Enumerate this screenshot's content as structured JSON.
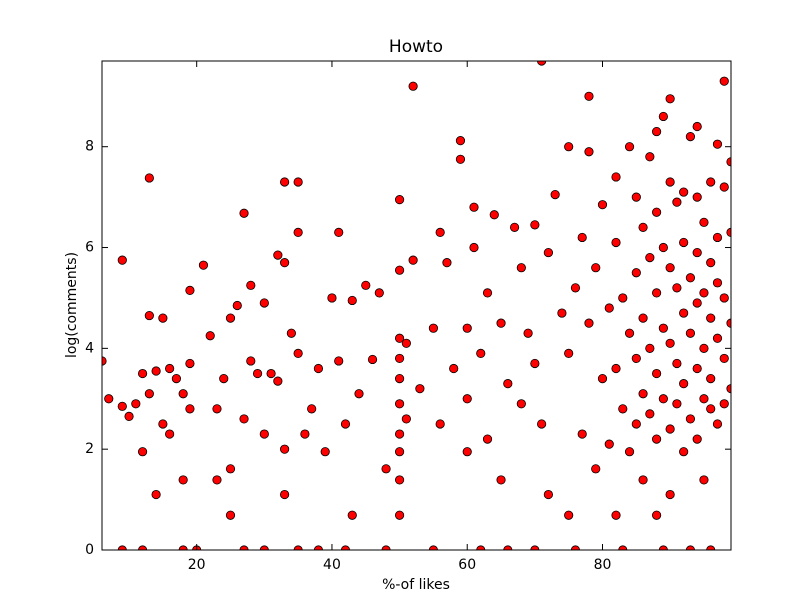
{
  "chart_data": {
    "type": "scatter",
    "title": "Howto",
    "x_label": "%-of likes",
    "y_label": "log(comments)",
    "color": "#ff0000",
    "xlim": [
      6,
      99
    ],
    "ylim": [
      0,
      9.7
    ],
    "xticks": [
      20,
      40,
      60,
      80
    ],
    "yticks": [
      0,
      2,
      4,
      6,
      8
    ],
    "x": [
      6,
      7,
      9,
      9,
      10,
      11,
      12,
      12,
      13,
      13,
      13,
      14,
      14,
      15,
      15,
      16,
      16,
      17,
      18,
      18,
      19,
      19,
      19,
      21,
      22,
      23,
      23,
      24,
      25,
      25,
      25,
      26,
      27,
      27,
      28,
      28,
      29,
      30,
      30,
      31,
      32,
      32,
      33,
      33,
      33,
      33,
      34,
      35,
      35,
      35,
      36,
      37,
      38,
      39,
      40,
      41,
      41,
      42,
      43,
      43,
      44,
      45,
      46,
      47,
      48,
      50,
      50,
      50,
      50,
      50,
      50,
      50,
      50,
      50,
      50,
      51,
      51,
      52,
      52,
      53,
      55,
      56,
      56,
      57,
      58,
      59,
      59,
      60,
      60,
      60,
      61,
      61,
      62,
      63,
      63,
      64,
      65,
      65,
      66,
      67,
      68,
      68,
      69,
      70,
      70,
      71,
      71,
      72,
      72,
      73,
      74,
      75,
      75,
      75,
      76,
      77,
      77,
      78,
      78,
      78,
      79,
      79,
      80,
      80,
      81,
      81,
      82,
      82,
      82,
      82,
      83,
      83,
      84,
      84,
      84,
      85,
      85,
      85,
      85,
      86,
      86,
      86,
      86,
      87,
      87,
      87,
      87,
      88,
      88,
      88,
      88,
      88,
      88,
      89,
      89,
      89,
      89,
      90,
      90,
      90,
      90,
      90,
      90,
      91,
      91,
      91,
      91,
      92,
      92,
      92,
      92,
      92,
      93,
      93,
      93,
      93,
      93,
      94,
      94,
      94,
      94,
      94,
      94,
      95,
      95,
      95,
      95,
      95,
      96,
      96,
      96,
      96,
      96,
      97,
      97,
      97,
      97,
      97,
      98,
      98,
      98,
      98,
      98,
      99,
      99,
      99,
      99,
      9,
      12,
      18,
      20,
      27,
      30,
      35,
      38,
      42,
      48,
      55,
      62,
      66,
      70,
      76,
      83,
      89,
      96
    ],
    "y": [
      3.75,
      3.0,
      5.75,
      2.85,
      2.65,
      2.9,
      3.5,
      1.95,
      7.38,
      4.65,
      3.1,
      3.55,
      1.1,
      4.6,
      2.5,
      2.3,
      3.6,
      3.4,
      3.1,
      1.39,
      3.7,
      5.15,
      2.8,
      5.65,
      4.25,
      2.8,
      1.39,
      3.4,
      4.6,
      1.61,
      0.69,
      4.85,
      6.68,
      2.6,
      5.25,
      3.75,
      3.5,
      4.9,
      2.3,
      3.5,
      5.85,
      3.35,
      7.3,
      5.7,
      2.0,
      1.1,
      4.3,
      7.3,
      6.3,
      3.9,
      2.3,
      2.8,
      3.6,
      1.95,
      5.0,
      6.3,
      3.75,
      2.5,
      4.95,
      0.69,
      3.1,
      5.25,
      3.78,
      5.1,
      1.61,
      6.95,
      5.55,
      4.2,
      3.8,
      3.4,
      2.9,
      2.3,
      1.95,
      1.39,
      0.69,
      4.1,
      2.6,
      9.2,
      5.75,
      3.2,
      4.4,
      6.3,
      2.5,
      5.7,
      3.6,
      7.75,
      8.12,
      4.4,
      3.0,
      1.95,
      6.8,
      6.0,
      3.9,
      5.1,
      2.2,
      6.65,
      4.5,
      1.39,
      3.3,
      6.4,
      2.9,
      5.6,
      4.3,
      6.45,
      3.7,
      9.7,
      2.5,
      5.9,
      1.1,
      7.05,
      4.7,
      8.0,
      3.9,
      0.69,
      5.2,
      6.2,
      2.3,
      9.0,
      7.9,
      4.5,
      5.6,
      1.61,
      6.85,
      3.4,
      4.8,
      2.1,
      7.4,
      6.1,
      3.6,
      0.69,
      5.0,
      2.8,
      8.0,
      4.3,
      1.95,
      7.0,
      5.5,
      3.8,
      2.5,
      6.4,
      4.6,
      3.1,
      1.39,
      7.8,
      5.8,
      4.0,
      2.7,
      8.3,
      6.7,
      5.1,
      3.5,
      2.2,
      0.69,
      8.6,
      6.0,
      4.4,
      3.0,
      8.95,
      7.3,
      5.6,
      4.1,
      2.4,
      1.1,
      6.9,
      5.2,
      3.7,
      2.9,
      7.1,
      6.1,
      4.7,
      3.3,
      1.95,
      8.2,
      5.4,
      4.3,
      2.6,
      0,
      8.4,
      7.0,
      5.9,
      4.9,
      3.6,
      2.2,
      6.5,
      5.1,
      4.0,
      3.0,
      1.39,
      7.3,
      5.7,
      4.6,
      3.4,
      2.8,
      8.05,
      6.2,
      5.3,
      4.2,
      2.5,
      9.3,
      7.2,
      5.0,
      3.8,
      2.9,
      7.7,
      6.3,
      4.5,
      3.2,
      0,
      0,
      0,
      0,
      0,
      0,
      0,
      0,
      0,
      0,
      0,
      0,
      0,
      0,
      0,
      0,
      0,
      0
    ]
  }
}
